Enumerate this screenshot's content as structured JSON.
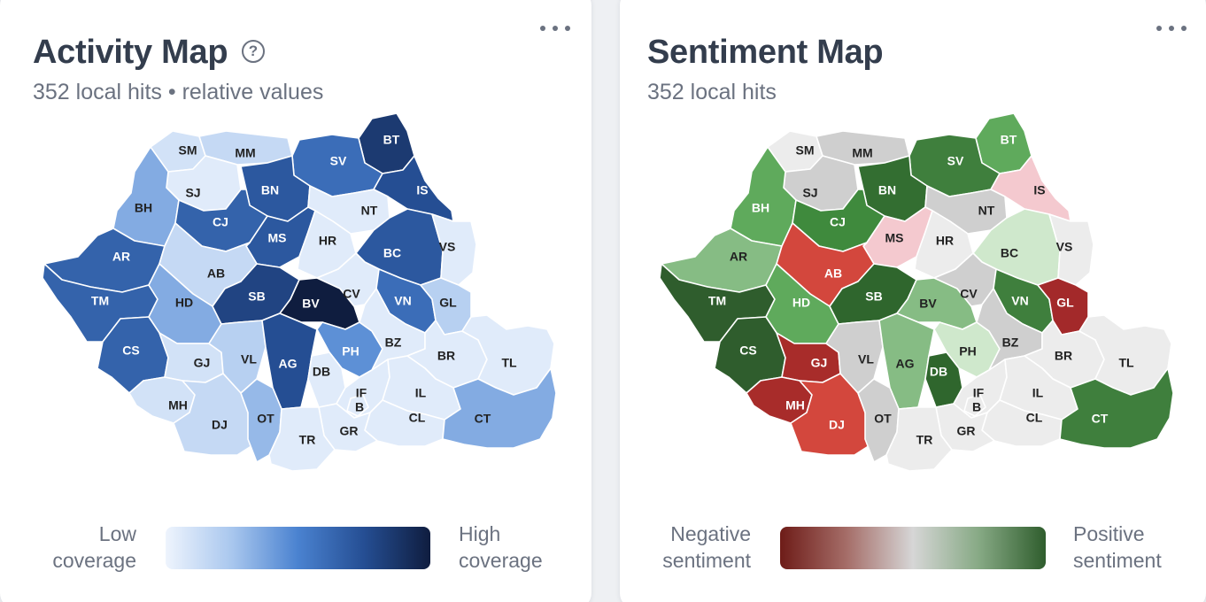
{
  "activity": {
    "title": "Activity Map",
    "subtitle": "352 local hits • relative values",
    "help_icon": "question-circle-icon",
    "menu_icon": "more-horizontal-icon",
    "legend": {
      "low_line1": "Low",
      "low_line2": "coverage",
      "high_line1": "High",
      "high_line2": "coverage",
      "gradient": [
        "#eef4fd",
        "#a9c7ee",
        "#4a82d0",
        "#254e93",
        "#0f1d3f"
      ]
    },
    "counties": [
      {
        "code": "SM",
        "level": 0.1
      },
      {
        "code": "MM",
        "level": 0.15
      },
      {
        "code": "BT",
        "level": 0.85
      },
      {
        "code": "SV",
        "level": 0.6
      },
      {
        "code": "IS",
        "level": 0.75
      },
      {
        "code": "SJ",
        "level": 0.05
      },
      {
        "code": "BN",
        "level": 0.7
      },
      {
        "code": "BH",
        "level": 0.35
      },
      {
        "code": "CJ",
        "level": 0.65
      },
      {
        "code": "NT",
        "level": 0.05
      },
      {
        "code": "MS",
        "level": 0.7
      },
      {
        "code": "HR",
        "level": 0.05
      },
      {
        "code": "AR",
        "level": 0.65
      },
      {
        "code": "BC",
        "level": 0.7
      },
      {
        "code": "VS",
        "level": 0.05
      },
      {
        "code": "AB",
        "level": 0.15
      },
      {
        "code": "TM",
        "level": 0.65
      },
      {
        "code": "HD",
        "level": 0.35
      },
      {
        "code": "SB",
        "level": 0.8
      },
      {
        "code": "BV",
        "level": 1.0
      },
      {
        "code": "CV",
        "level": 0.05
      },
      {
        "code": "VN",
        "level": 0.6
      },
      {
        "code": "GL",
        "level": 0.2
      },
      {
        "code": "CS",
        "level": 0.65
      },
      {
        "code": "GJ",
        "level": 0.1
      },
      {
        "code": "VL",
        "level": 0.2
      },
      {
        "code": "AG",
        "level": 0.75
      },
      {
        "code": "PH",
        "level": 0.45
      },
      {
        "code": "BZ",
        "level": 0.05
      },
      {
        "code": "BR",
        "level": 0.05
      },
      {
        "code": "TL",
        "level": 0.05
      },
      {
        "code": "DB",
        "level": 0.05
      },
      {
        "code": "MH",
        "level": 0.1
      },
      {
        "code": "DJ",
        "level": 0.15
      },
      {
        "code": "OT",
        "level": 0.3
      },
      {
        "code": "IF",
        "level": 0.05
      },
      {
        "code": "B",
        "level": 0.05
      },
      {
        "code": "IL",
        "level": 0.05
      },
      {
        "code": "CL",
        "level": 0.05
      },
      {
        "code": "CT",
        "level": 0.35
      },
      {
        "code": "GR",
        "level": 0.05
      },
      {
        "code": "TR",
        "level": 0.05
      }
    ]
  },
  "sentiment": {
    "title": "Sentiment Map",
    "subtitle": "352 local hits",
    "menu_icon": "more-horizontal-icon",
    "legend": {
      "neg_line1": "Negative",
      "neg_line2": "sentiment",
      "pos_line1": "Positive",
      "pos_line2": "sentiment",
      "gradient": [
        "#6e1c18",
        "#a56d68",
        "#d6d6d6",
        "#86a984",
        "#2f5d2d"
      ]
    },
    "counties": [
      {
        "code": "SM",
        "color": "#ececec"
      },
      {
        "code": "MM",
        "color": "#cfcfcf"
      },
      {
        "code": "BT",
        "color": "#5faa5c"
      },
      {
        "code": "SV",
        "color": "#3f7f3d"
      },
      {
        "code": "IS",
        "color": "#f4c9cf"
      },
      {
        "code": "SJ",
        "color": "#cfcfcf"
      },
      {
        "code": "BN",
        "color": "#336e31"
      },
      {
        "code": "BH",
        "color": "#5faa5c"
      },
      {
        "code": "CJ",
        "color": "#3f8a3d"
      },
      {
        "code": "NT",
        "color": "#cfcfcf"
      },
      {
        "code": "MS",
        "color": "#f4c9cf"
      },
      {
        "code": "HR",
        "color": "#ececec"
      },
      {
        "code": "AR",
        "color": "#86bc84"
      },
      {
        "code": "BC",
        "color": "#cfe8cc"
      },
      {
        "code": "VS",
        "color": "#ececec"
      },
      {
        "code": "AB",
        "color": "#d3473d"
      },
      {
        "code": "TM",
        "color": "#2f5d2d"
      },
      {
        "code": "HD",
        "color": "#5faa5c"
      },
      {
        "code": "SB",
        "color": "#2f662d"
      },
      {
        "code": "BV",
        "color": "#86bc84"
      },
      {
        "code": "CV",
        "color": "#cfcfcf"
      },
      {
        "code": "VN",
        "color": "#3f7f3d"
      },
      {
        "code": "GL",
        "color": "#a3292a"
      },
      {
        "code": "CS",
        "color": "#2f5d2d"
      },
      {
        "code": "GJ",
        "color": "#a82c2a"
      },
      {
        "code": "VL",
        "color": "#cfcfcf"
      },
      {
        "code": "AG",
        "color": "#86bc84"
      },
      {
        "code": "PH",
        "color": "#cfe8cc"
      },
      {
        "code": "BZ",
        "color": "#cfcfcf"
      },
      {
        "code": "BR",
        "color": "#ececec"
      },
      {
        "code": "TL",
        "color": "#ececec"
      },
      {
        "code": "DB",
        "color": "#2f662d"
      },
      {
        "code": "MH",
        "color": "#a82c2a"
      },
      {
        "code": "DJ",
        "color": "#d3473d"
      },
      {
        "code": "OT",
        "color": "#cfcfcf"
      },
      {
        "code": "IF",
        "color": "#ececec"
      },
      {
        "code": "B",
        "color": "#ececec"
      },
      {
        "code": "IL",
        "color": "#ececec"
      },
      {
        "code": "CL",
        "color": "#ececec"
      },
      {
        "code": "CT",
        "color": "#3f7f3d"
      },
      {
        "code": "GR",
        "color": "#ececec"
      },
      {
        "code": "TR",
        "color": "#ececec"
      }
    ]
  }
}
